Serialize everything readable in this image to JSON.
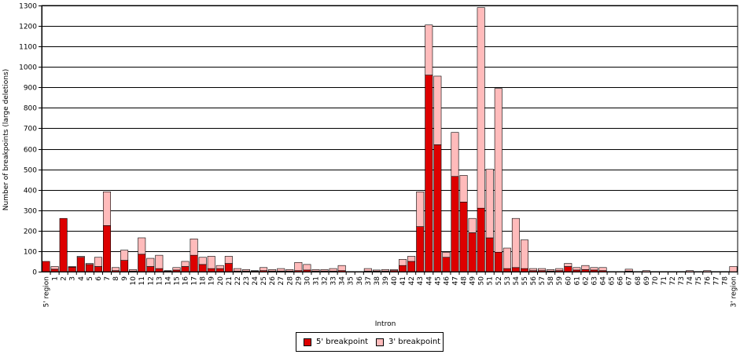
{
  "chart_data": {
    "type": "bar",
    "stacked": true,
    "xlabel": "Intron",
    "ylabel": "Number of breakpoints (large deletions)",
    "ylim": [
      0,
      1300
    ],
    "yticks": [
      0,
      100,
      200,
      300,
      400,
      500,
      600,
      700,
      800,
      900,
      1000,
      1100,
      1200,
      1300
    ],
    "grid": true,
    "legend_position": "bottom",
    "categories": [
      "5' region",
      "1",
      "2",
      "3",
      "4",
      "5",
      "6",
      "7",
      "8",
      "9",
      "10",
      "11",
      "12",
      "13",
      "14",
      "15",
      "16",
      "17",
      "18",
      "19",
      "20",
      "21",
      "22",
      "23",
      "24",
      "25",
      "26",
      "27",
      "28",
      "29",
      "30",
      "31",
      "32",
      "33",
      "34",
      "35",
      "36",
      "37",
      "38",
      "39",
      "40",
      "41",
      "42",
      "43",
      "44",
      "45",
      "46",
      "47",
      "48",
      "49",
      "50",
      "51",
      "52",
      "53",
      "54",
      "55",
      "56",
      "57",
      "58",
      "59",
      "60",
      "61",
      "62",
      "63",
      "64",
      "65",
      "66",
      "67",
      "68",
      "69",
      "70",
      "71",
      "72",
      "73",
      "74",
      "75",
      "76",
      "77",
      "78",
      "3' region"
    ],
    "series": [
      {
        "name": "5' breakpoint",
        "color": "#dd0000",
        "values": [
          50,
          12,
          260,
          22,
          70,
          35,
          25,
          225,
          5,
          55,
          3,
          85,
          25,
          15,
          3,
          8,
          25,
          80,
          35,
          15,
          15,
          40,
          3,
          3,
          2,
          5,
          3,
          3,
          3,
          5,
          8,
          3,
          3,
          3,
          5,
          0,
          0,
          3,
          3,
          3,
          5,
          30,
          50,
          220,
          960,
          620,
          70,
          465,
          340,
          190,
          310,
          165,
          95,
          15,
          20,
          15,
          5,
          5,
          3,
          5,
          25,
          8,
          10,
          8,
          5,
          0,
          0,
          3,
          0,
          0,
          0,
          0,
          0,
          0,
          0,
          0,
          0,
          0,
          0,
          0
        ],
        "totals": [
          50,
          25,
          260,
          25,
          75,
          40,
          70,
          390,
          20,
          105,
          10,
          165,
          65,
          80,
          5,
          20,
          50,
          160,
          70,
          75,
          30,
          75,
          15,
          10,
          5,
          20,
          10,
          15,
          10,
          45,
          35,
          10,
          10,
          15,
          30,
          0,
          0,
          15,
          8,
          10,
          10,
          60,
          75,
          390,
          1205,
          955,
          95,
          680,
          470,
          260,
          1290,
          500,
          895,
          115,
          260,
          155,
          15,
          15,
          10,
          15,
          40,
          20,
          30,
          20,
          20,
          0,
          0,
          12,
          0,
          5,
          0,
          0,
          0,
          0,
          5,
          0,
          5,
          0,
          0,
          25
        ]
      },
      {
        "name": "3' breakpoint",
        "color": "#ffbbbb",
        "values": [
          0,
          13,
          0,
          3,
          5,
          5,
          45,
          165,
          15,
          50,
          7,
          80,
          40,
          65,
          2,
          12,
          25,
          80,
          35,
          60,
          15,
          35,
          12,
          7,
          3,
          15,
          7,
          12,
          7,
          40,
          27,
          7,
          7,
          12,
          25,
          0,
          0,
          12,
          5,
          7,
          5,
          30,
          25,
          170,
          245,
          335,
          25,
          215,
          130,
          70,
          980,
          335,
          800,
          100,
          240,
          140,
          10,
          10,
          7,
          10,
          15,
          12,
          20,
          12,
          15,
          0,
          0,
          9,
          0,
          5,
          0,
          0,
          0,
          0,
          5,
          0,
          5,
          0,
          0,
          25
        ]
      }
    ]
  }
}
